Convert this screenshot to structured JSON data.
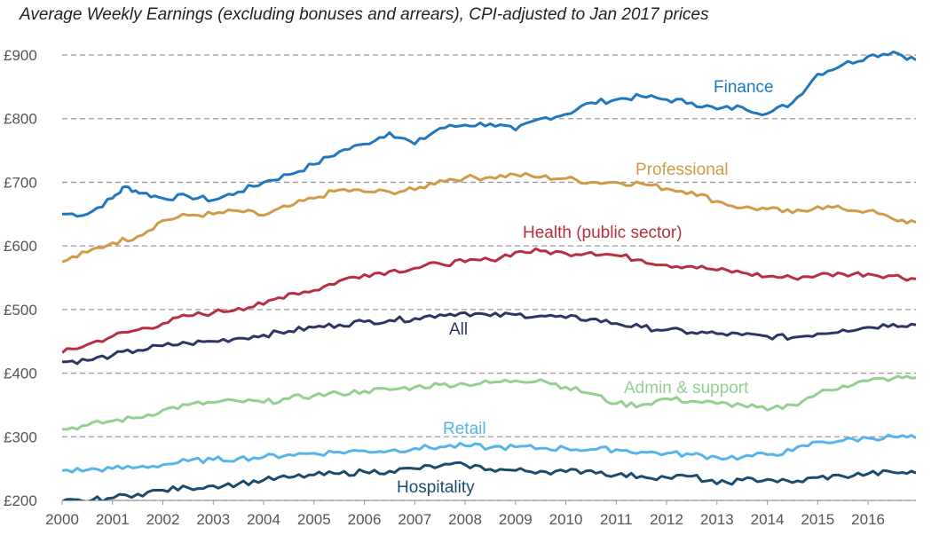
{
  "chart_data": {
    "type": "line",
    "title": "Average Weekly Earnings (excluding bonuses and arrears), CPI-adjusted to Jan 2017 prices",
    "xlabel": "",
    "ylabel": "",
    "xlim": [
      2000,
      2016.95
    ],
    "ylim": [
      200,
      900
    ],
    "x_ticks": [
      "2000",
      "2001",
      "2002",
      "2003",
      "2004",
      "2005",
      "2006",
      "2007",
      "2008",
      "2009",
      "2010",
      "2011",
      "2012",
      "2013",
      "2014",
      "2015",
      "2016"
    ],
    "y_ticks": [
      "£200",
      "£300",
      "£400",
      "£500",
      "£600",
      "£700",
      "£800",
      "£900"
    ],
    "grid": "horizontal dashed",
    "legend": "labels placed next to lines",
    "series": [
      {
        "name": "Finance",
        "color": "#1f77c0",
        "x": [
          2000,
          2000.5,
          2001,
          2001.25,
          2001.6,
          2002,
          2002.5,
          2003,
          2003.5,
          2004,
          2004.5,
          2005,
          2005.5,
          2006,
          2006.5,
          2007,
          2007.5,
          2008,
          2008.5,
          2009,
          2009.5,
          2010,
          2010.5,
          2011,
          2011.5,
          2012,
          2012.5,
          2013,
          2013.5,
          2014,
          2014.5,
          2015,
          2015.5,
          2016,
          2016.5,
          2016.95
        ],
        "y": [
          650,
          650,
          675,
          693,
          683,
          675,
          678,
          672,
          685,
          700,
          712,
          728,
          748,
          760,
          778,
          760,
          785,
          790,
          792,
          782,
          800,
          807,
          825,
          830,
          835,
          830,
          825,
          815,
          818,
          808,
          825,
          870,
          885,
          898,
          905,
          892
        ]
      },
      {
        "name": "Professional",
        "color": "#d19a47",
        "x": [
          2000,
          2000.5,
          2001,
          2001.5,
          2002,
          2002.5,
          2003,
          2003.5,
          2004,
          2004.5,
          2005,
          2005.5,
          2006,
          2006.5,
          2007,
          2007.5,
          2008,
          2008.5,
          2009,
          2009.5,
          2010,
          2010.5,
          2011,
          2011.5,
          2012,
          2012.5,
          2013,
          2013.5,
          2014,
          2014.5,
          2015,
          2015.5,
          2016,
          2016.5,
          2016.95
        ],
        "y": [
          575,
          590,
          605,
          615,
          640,
          648,
          650,
          655,
          648,
          662,
          675,
          688,
          685,
          685,
          688,
          703,
          707,
          708,
          712,
          708,
          706,
          700,
          700,
          698,
          690,
          685,
          670,
          660,
          658,
          652,
          662,
          658,
          655,
          642,
          637
        ]
      },
      {
        "name": "Health (public sector)",
        "color": "#b8303f",
        "x": [
          2000,
          2000.5,
          2001,
          2001.5,
          2002,
          2002.5,
          2003,
          2003.5,
          2004,
          2004.5,
          2005,
          2005.5,
          2006,
          2006.5,
          2007,
          2007.5,
          2008,
          2008.5,
          2009,
          2009.5,
          2010,
          2010.5,
          2011,
          2011.5,
          2012,
          2012.5,
          2013,
          2013.5,
          2014,
          2014.5,
          2015,
          2015.5,
          2016,
          2016.5,
          2016.95
        ],
        "y": [
          432,
          445,
          458,
          468,
          478,
          490,
          495,
          502,
          508,
          525,
          530,
          545,
          555,
          560,
          565,
          572,
          575,
          578,
          590,
          592,
          588,
          590,
          585,
          578,
          570,
          568,
          562,
          558,
          552,
          550,
          554,
          556,
          556,
          553,
          548
        ]
      },
      {
        "name": "All",
        "color": "#2e3566",
        "x": [
          2000,
          2000.5,
          2001,
          2001.5,
          2002,
          2002.5,
          2003,
          2003.5,
          2004,
          2004.5,
          2005,
          2005.5,
          2006,
          2006.5,
          2007,
          2007.5,
          2008,
          2008.5,
          2009,
          2009.5,
          2010,
          2010.5,
          2011,
          2011.5,
          2012,
          2012.5,
          2013,
          2013.5,
          2014,
          2014.5,
          2015,
          2015.5,
          2016,
          2016.5,
          2016.95
        ],
        "y": [
          418,
          420,
          428,
          436,
          443,
          447,
          450,
          455,
          460,
          466,
          472,
          476,
          481,
          483,
          486,
          492,
          495,
          490,
          492,
          490,
          487,
          485,
          478,
          472,
          468,
          464,
          462,
          460,
          458,
          456,
          462,
          468,
          472,
          477,
          476
        ]
      },
      {
        "name": "Admin & support",
        "color": "#95cf93",
        "x": [
          2000,
          2000.5,
          2001,
          2001.5,
          2002,
          2002.5,
          2003,
          2003.5,
          2004,
          2004.5,
          2005,
          2005.5,
          2006,
          2006.5,
          2007,
          2007.5,
          2008,
          2008.5,
          2009,
          2009.5,
          2010,
          2010.5,
          2011,
          2011.5,
          2012,
          2012.5,
          2013,
          2013.5,
          2014,
          2014.5,
          2015,
          2015.5,
          2016,
          2016.5,
          2016.95
        ],
        "y": [
          312,
          318,
          325,
          330,
          342,
          350,
          354,
          356,
          354,
          360,
          365,
          368,
          372,
          374,
          378,
          382,
          383,
          385,
          388,
          390,
          378,
          368,
          352,
          350,
          360,
          356,
          352,
          350,
          342,
          350,
          368,
          380,
          388,
          392,
          393
        ]
      },
      {
        "name": "Retail",
        "color": "#56b4e9",
        "x": [
          2000,
          2000.5,
          2001,
          2001.5,
          2002,
          2002.5,
          2003,
          2003.5,
          2004,
          2004.5,
          2005,
          2005.5,
          2006,
          2006.5,
          2007,
          2007.5,
          2008,
          2008.5,
          2009,
          2009.5,
          2010,
          2010.5,
          2011,
          2011.5,
          2012,
          2012.5,
          2013,
          2013.5,
          2014,
          2014.5,
          2015,
          2015.5,
          2016,
          2016.5,
          2016.95
        ],
        "y": [
          247,
          248,
          250,
          252,
          256,
          262,
          264,
          266,
          268,
          272,
          274,
          276,
          278,
          278,
          282,
          284,
          286,
          283,
          284,
          282,
          282,
          280,
          280,
          276,
          274,
          272,
          268,
          268,
          272,
          278,
          292,
          294,
          298,
          300,
          298
        ]
      },
      {
        "name": "Hospitality",
        "color": "#1b4c6f",
        "x": [
          2000,
          2000.4,
          2000.9,
          2001.5,
          2002,
          2002.5,
          2003,
          2003.5,
          2004,
          2004.5,
          2005,
          2005.5,
          2006,
          2006.5,
          2007,
          2007.5,
          2008,
          2008.5,
          2009,
          2009.5,
          2010,
          2010.5,
          2011,
          2011.5,
          2012,
          2012.5,
          2013,
          2013.5,
          2014,
          2014.5,
          2015,
          2015.5,
          2016,
          2016.5,
          2016.95
        ],
        "y": [
          198,
          199,
          203,
          210,
          216,
          220,
          223,
          226,
          232,
          236,
          240,
          242,
          245,
          246,
          250,
          254,
          256,
          249,
          247,
          246,
          245,
          247,
          240,
          238,
          236,
          238,
          226,
          232,
          233,
          228,
          236,
          238,
          242,
          244,
          243
        ]
      }
    ],
    "series_labels": [
      {
        "series": "Finance",
        "text": "Finance"
      },
      {
        "series": "Professional",
        "text": "Professional"
      },
      {
        "series": "Health (public sector)",
        "text": "Health (public sector)"
      },
      {
        "series": "All",
        "text": "All"
      },
      {
        "series": "Admin & support",
        "text": "Admin & support"
      },
      {
        "series": "Retail",
        "text": "Retail"
      },
      {
        "series": "Hospitality",
        "text": "Hospitality"
      }
    ]
  }
}
